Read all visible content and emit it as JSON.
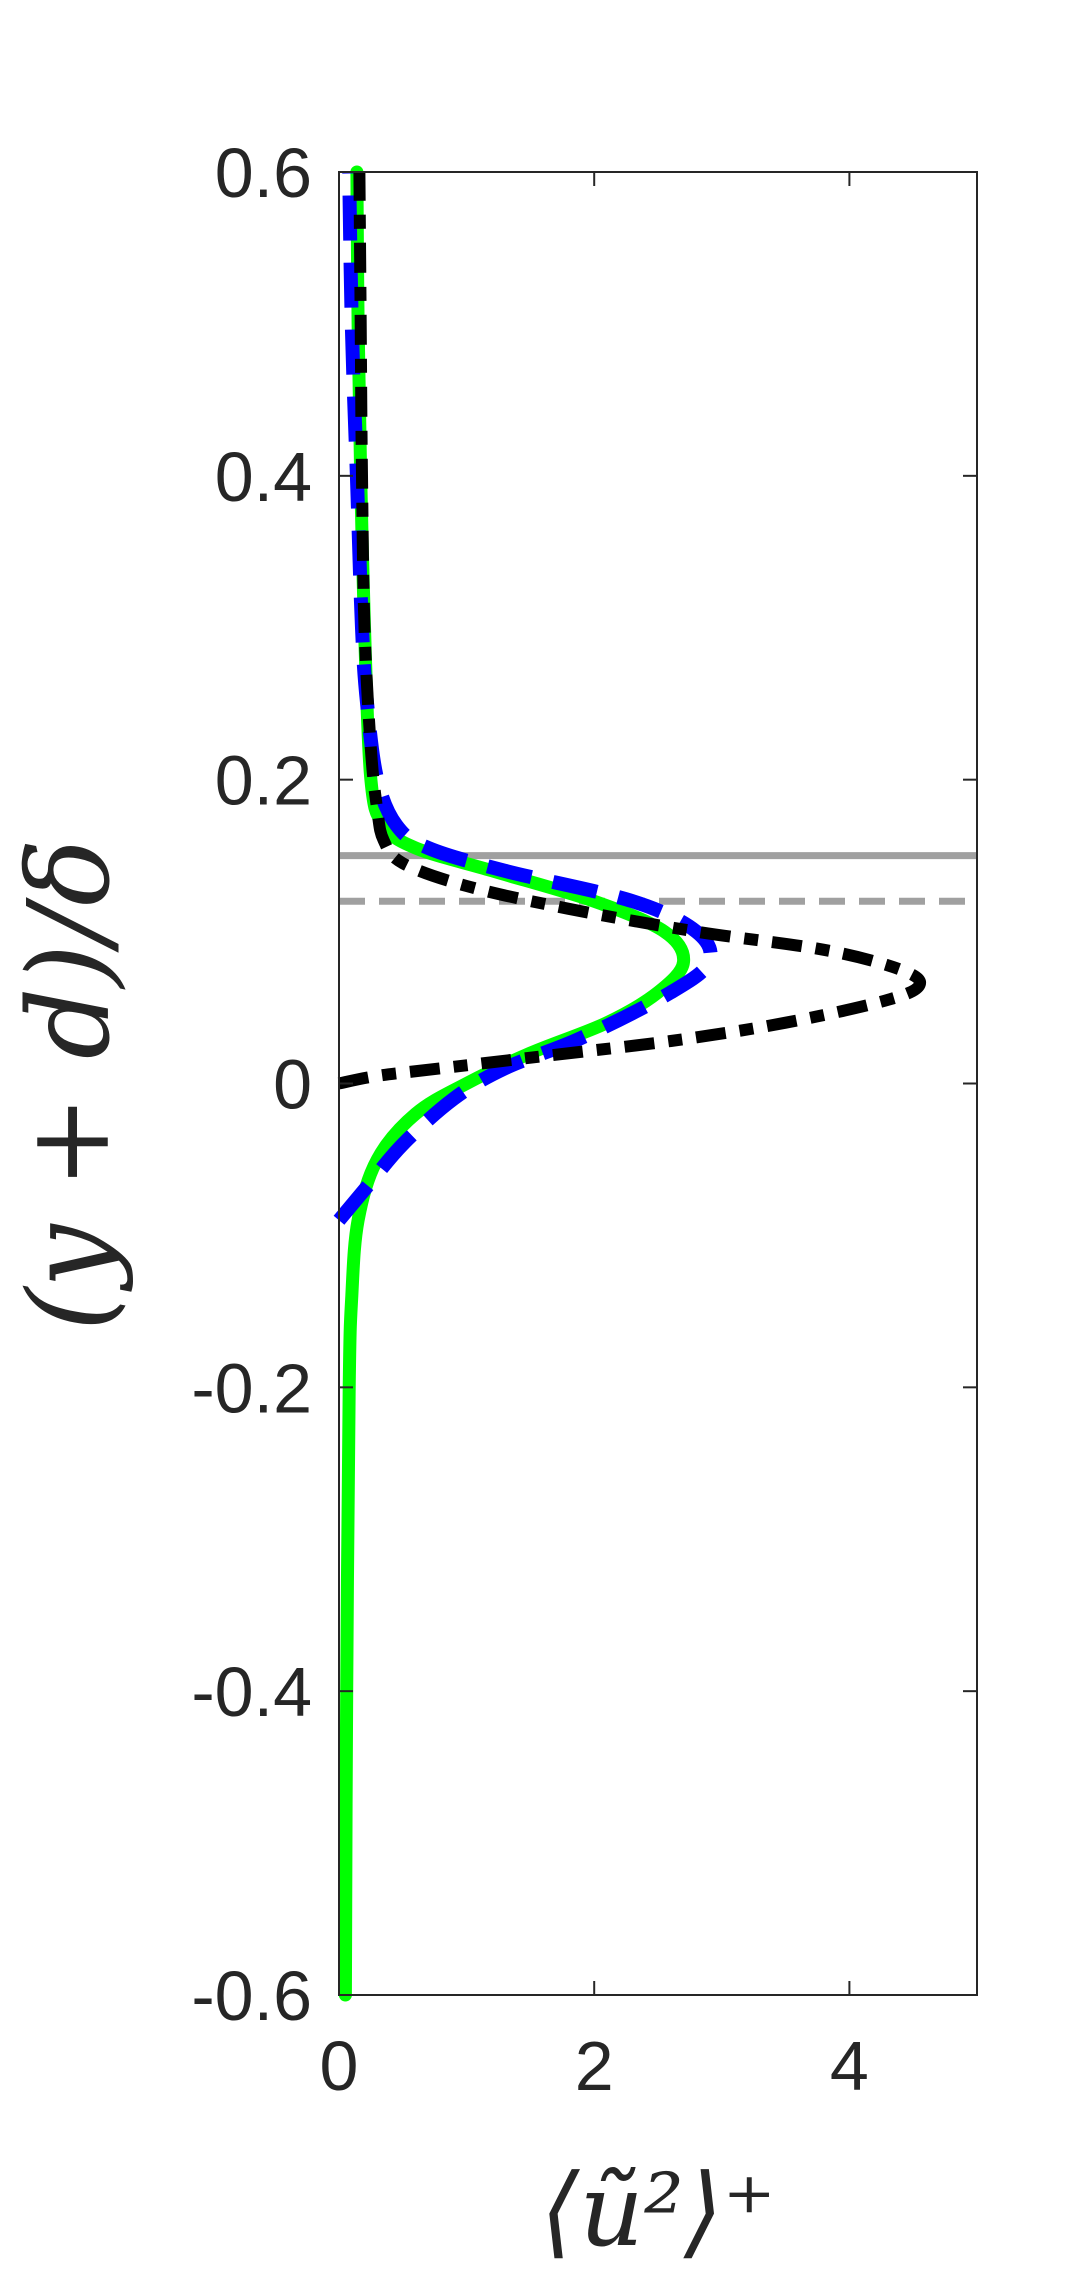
{
  "chart_data": {
    "type": "line",
    "title": "",
    "xlabel": "⟨ũ²⟩⁺",
    "ylabel": "(y + d)/δ",
    "xlim": [
      0,
      5
    ],
    "ylim": [
      -0.6,
      0.6
    ],
    "xticks": [
      0,
      2,
      4
    ],
    "xtick_labels": [
      "0",
      "2",
      "4"
    ],
    "yticks": [
      -0.6,
      -0.4,
      -0.2,
      0,
      0.2,
      0.4,
      0.6
    ],
    "ytick_labels": [
      "-0.6",
      "-0.4",
      "-0.2",
      "0",
      "0.2",
      "0.4",
      "0.6"
    ],
    "grid": false,
    "legend": "none",
    "reference_lines": [
      {
        "orientation": "horizontal",
        "y": 0.15,
        "style": "solid",
        "color": "#a0a0a0"
      },
      {
        "orientation": "horizontal",
        "y": 0.12,
        "style": "dashed",
        "color": "#a0a0a0"
      }
    ],
    "series": [
      {
        "color": "#00ff00",
        "style": "solid",
        "points": [
          [
            0.05,
            -0.6
          ],
          [
            0.06,
            -0.4
          ],
          [
            0.08,
            -0.2
          ],
          [
            0.1,
            -0.14
          ],
          [
            0.15,
            -0.09
          ],
          [
            0.3,
            -0.05
          ],
          [
            0.6,
            -0.02
          ],
          [
            1.0,
            0.0
          ],
          [
            1.5,
            0.02
          ],
          [
            2.1,
            0.04
          ],
          [
            2.5,
            0.06
          ],
          [
            2.7,
            0.08
          ],
          [
            2.55,
            0.1
          ],
          [
            2.0,
            0.12
          ],
          [
            1.2,
            0.14
          ],
          [
            0.6,
            0.155
          ],
          [
            0.35,
            0.17
          ],
          [
            0.25,
            0.2
          ],
          [
            0.2,
            0.3
          ],
          [
            0.17,
            0.4
          ],
          [
            0.15,
            0.5
          ],
          [
            0.14,
            0.6
          ]
        ]
      },
      {
        "color": "#0000ff",
        "style": "dashed",
        "points": [
          [
            0.0,
            -0.09
          ],
          [
            0.2,
            -0.07
          ],
          [
            0.5,
            -0.04
          ],
          [
            0.9,
            -0.01
          ],
          [
            1.3,
            0.01
          ],
          [
            1.9,
            0.03
          ],
          [
            2.6,
            0.06
          ],
          [
            2.9,
            0.08
          ],
          [
            2.8,
            0.1
          ],
          [
            2.3,
            0.12
          ],
          [
            1.3,
            0.14
          ],
          [
            0.7,
            0.155
          ],
          [
            0.45,
            0.17
          ],
          [
            0.3,
            0.2
          ],
          [
            0.22,
            0.25
          ],
          [
            0.18,
            0.3
          ],
          [
            0.14,
            0.4
          ],
          [
            0.1,
            0.5
          ],
          [
            0.08,
            0.6
          ]
        ]
      },
      {
        "color": "#000000",
        "style": "dashdot",
        "points": [
          [
            0.0,
            0.0
          ],
          [
            0.3,
            0.005
          ],
          [
            0.8,
            0.01
          ],
          [
            1.6,
            0.018
          ],
          [
            2.6,
            0.028
          ],
          [
            3.5,
            0.04
          ],
          [
            4.3,
            0.055
          ],
          [
            4.55,
            0.065
          ],
          [
            4.4,
            0.075
          ],
          [
            3.8,
            0.088
          ],
          [
            2.8,
            0.1
          ],
          [
            1.8,
            0.115
          ],
          [
            1.0,
            0.13
          ],
          [
            0.5,
            0.145
          ],
          [
            0.35,
            0.16
          ],
          [
            0.3,
            0.18
          ],
          [
            0.25,
            0.22
          ],
          [
            0.2,
            0.3
          ],
          [
            0.18,
            0.4
          ],
          [
            0.17,
            0.5
          ],
          [
            0.16,
            0.6
          ]
        ]
      }
    ]
  }
}
